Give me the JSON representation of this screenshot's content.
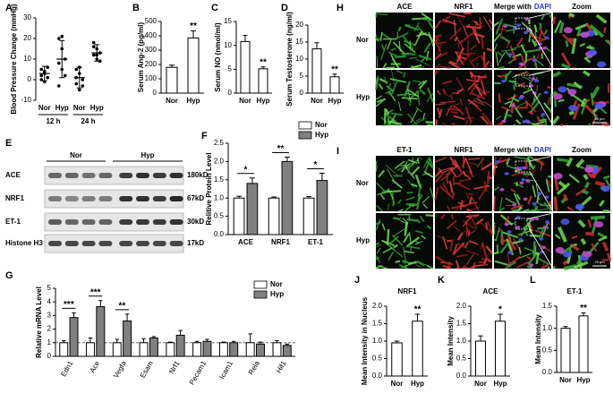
{
  "chart_data": [
    {
      "type": "dot",
      "panel": "A",
      "ylabel": "Blood Pressure Change (mmHg)",
      "categories": [
        "Nor",
        "Hyp",
        "Nor",
        "Hyp"
      ],
      "groups": [
        "12 h",
        "24 h"
      ],
      "points": [
        [
          5,
          3,
          1,
          0,
          4,
          6,
          2,
          -1
        ],
        [
          20,
          15,
          10,
          8,
          5,
          2,
          -3,
          21
        ],
        [
          5,
          3,
          0,
          -2,
          -5,
          -3,
          1,
          6
        ],
        [
          18,
          15,
          13,
          12,
          10,
          9,
          16,
          12
        ]
      ],
      "values": [
        3,
        10,
        1,
        13
      ],
      "errors": [
        3.5,
        9,
        5,
        4
      ],
      "ylim": [
        -10,
        30
      ],
      "yticks": [
        -10,
        0,
        10,
        20,
        30
      ]
    },
    {
      "type": "bar",
      "panel": "B",
      "ylabel": "Serum Ang-2 (pg/ml)",
      "categories": [
        "Nor",
        "Hyp"
      ],
      "values": [
        180,
        385
      ],
      "errors": [
        15,
        50
      ],
      "annotations": [
        null,
        "**"
      ],
      "color": "#ffffff",
      "ylim": [
        0,
        500
      ],
      "yticks": [
        0,
        100,
        200,
        300,
        400,
        500
      ]
    },
    {
      "type": "bar",
      "panel": "C",
      "ylabel": "Serum NO (nmol/ml)",
      "categories": [
        "Nor",
        "Hyp"
      ],
      "values": [
        10.8,
        5.1
      ],
      "errors": [
        1.3,
        0.4
      ],
      "annotations": [
        null,
        "**"
      ],
      "color": "#ffffff",
      "ylim": [
        0,
        15
      ],
      "yticks": [
        0,
        5,
        10,
        15
      ]
    },
    {
      "type": "bar",
      "panel": "D",
      "ylabel": "Serum Testosterone (ng/ml)",
      "categories": [
        "Nor",
        "Hyp"
      ],
      "values": [
        13,
        4.8
      ],
      "errors": [
        1.8,
        0.8
      ],
      "annotations": [
        null,
        "**"
      ],
      "color": "#ffffff",
      "ylim": [
        0,
        20
      ],
      "yticks": [
        0,
        5,
        10,
        15,
        20
      ]
    },
    {
      "type": "bar",
      "panel": "F",
      "ylabel": "Relitive Protein Level",
      "categories": [
        "ACE",
        "NRF1",
        "ET-1"
      ],
      "annotation_line": true,
      "series": [
        {
          "name": "Nor",
          "color": "#ffffff",
          "values": [
            1,
            1,
            1
          ],
          "errors": [
            0.05,
            0.03,
            0.04
          ]
        },
        {
          "name": "Hyp",
          "color": "#808080",
          "values": [
            1.4,
            2.0,
            1.48
          ],
          "errors": [
            0.15,
            0.12,
            0.2
          ],
          "annotations": [
            "*",
            "**",
            "*"
          ]
        }
      ],
      "ylim": [
        0,
        2.5
      ],
      "yticks": [
        {
          "value": 0,
          "label": "0.0"
        },
        0.5,
        {
          "value": 1,
          "label": "1.0"
        },
        1.5,
        {
          "value": 2,
          "label": "2.0"
        },
        2.5
      ]
    },
    {
      "type": "bar",
      "panel": "G",
      "ylabel": "Relative mRNA Level",
      "categories": [
        "Edn1",
        "Ace",
        "Vegfa",
        "Esam",
        "Nrf1",
        "Pecam1",
        "Icam1",
        "Rela",
        "Hif1"
      ],
      "annotation_line": true,
      "hline": 1,
      "series": [
        {
          "name": "Nor",
          "color": "#ffffff",
          "values": [
            1,
            1,
            1,
            1,
            1,
            1,
            1,
            1,
            1
          ],
          "errors": [
            0.15,
            0.35,
            0.25,
            0.3,
            0.05,
            0.1,
            0.05,
            0.65,
            0.15
          ]
        },
        {
          "name": "Hyp",
          "color": "#808080",
          "values": [
            2.85,
            3.65,
            2.6,
            1.35,
            1.55,
            1.1,
            1.0,
            0.9,
            0.8
          ],
          "errors": [
            0.35,
            0.45,
            0.5,
            0.1,
            0.35,
            0.15,
            0.1,
            0.15,
            0.1
          ],
          "annotations": [
            "***",
            "***",
            "**",
            null,
            null,
            null,
            null,
            null,
            null
          ]
        }
      ],
      "ylim": [
        0,
        5
      ],
      "yticks": [
        0,
        1,
        2,
        3,
        4,
        5
      ]
    },
    {
      "type": "bar",
      "panel": "J",
      "title": "NRF1",
      "ylabel": "Mean Intensity in Nucleus",
      "categories": [
        "Nor",
        "Hyp"
      ],
      "values": [
        0.95,
        1.57
      ],
      "errors": [
        0.05,
        0.2
      ],
      "annotations": [
        null,
        "**"
      ],
      "color": "#ffffff",
      "ylim": [
        0,
        2
      ],
      "yticks": [
        {
          "value": 0,
          "label": "0.0"
        },
        0.5,
        {
          "value": 1,
          "label": "1.0"
        },
        1.5,
        {
          "value": 2,
          "label": "2.0"
        }
      ]
    },
    {
      "type": "bar",
      "panel": "K",
      "title": "ACE",
      "ylabel": "Mean Intensity",
      "categories": [
        "Nor",
        "Hyp"
      ],
      "values": [
        1.0,
        1.57
      ],
      "errors": [
        0.15,
        0.2
      ],
      "annotations": [
        null,
        "*"
      ],
      "color": "#ffffff",
      "ylim": [
        0,
        2
      ],
      "yticks": [
        {
          "value": 0,
          "label": "0.0"
        },
        0.5,
        {
          "value": 1,
          "label": "1.0"
        },
        1.5,
        {
          "value": 2,
          "label": "2.0"
        }
      ]
    },
    {
      "type": "bar",
      "panel": "L",
      "title": "ET-1",
      "ylabel": "Mean Intensity",
      "categories": [
        "Nor",
        "Hyp"
      ],
      "values": [
        1.0,
        1.28
      ],
      "errors": [
        0.04,
        0.07
      ],
      "annotations": [
        null,
        "**"
      ],
      "color": "#ffffff",
      "ylim": [
        0,
        1.5
      ],
      "yticks": [
        {
          "value": 0,
          "label": "0.0"
        },
        0.5,
        {
          "value": 1,
          "label": "1.0"
        },
        1.5
      ]
    }
  ],
  "blot": {
    "panel": "E",
    "groups": [
      "Nor",
      "Hyp"
    ],
    "rows": [
      {
        "label": "ACE",
        "size": "180kD"
      },
      {
        "label": "NRF1",
        "size": "67kD"
      },
      {
        "label": "ET-1",
        "size": "30kD"
      },
      {
        "label": "Histone H3",
        "size": "17kD"
      }
    ]
  },
  "micrographs": [
    {
      "panel": "H",
      "columns": [
        "ACE",
        "NRF1",
        "Merge with",
        "Zoom"
      ],
      "dapi": "DAPI",
      "rows": [
        "Nor",
        "Hyp"
      ],
      "scale_bar": "25 μm"
    },
    {
      "panel": "I",
      "columns": [
        "ET-1",
        "NRF1",
        "Merge with",
        "Zoom"
      ],
      "dapi": "DAPI",
      "rows": [
        "Nor",
        "Hyp"
      ],
      "scale_bar": "25 μm"
    }
  ]
}
